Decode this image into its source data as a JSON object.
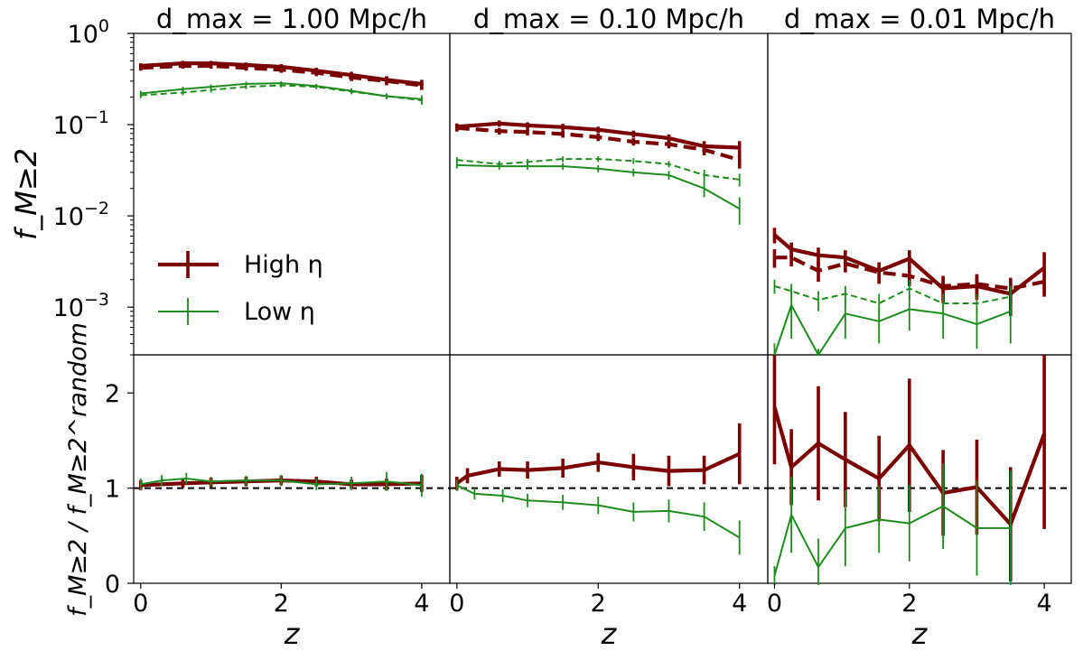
{
  "colors": {
    "high": "#7b0000",
    "low": "#1f8b1f",
    "reference": "#000000"
  },
  "figure": {
    "panel_titles": [
      "d_max = 1.00 Mpc/h",
      "d_max = 0.10 Mpc/h",
      "d_max = 0.01 Mpc/h"
    ],
    "top_ylabel": "f_M≥2",
    "bottom_ylabel": "f_M≥2 / f_M≥2^random",
    "xlabel": "z",
    "legend": {
      "high_label": "High η",
      "low_label": "Low η",
      "placement": "lower-left of first top panel"
    }
  },
  "chart_data": [
    {
      "type": "line",
      "panel": "top-left",
      "title": "d_max = 1.00 Mpc/h",
      "xlabel": "",
      "ylabel": "f_M≥2",
      "yscale": "log",
      "xlim": [
        -0.1,
        4.4
      ],
      "ylim": [
        0.0003,
        1
      ],
      "x_ticks": [],
      "y_ticks": [
        "10^0",
        "10^-1",
        "10^-2",
        "10^-3"
      ],
      "series": [
        {
          "name": "High η",
          "style": "solid",
          "x": [
            0,
            0.6,
            1,
            1.5,
            2,
            2.5,
            3,
            3.5,
            4
          ],
          "values": [
            0.44,
            0.47,
            0.47,
            0.45,
            0.43,
            0.39,
            0.35,
            0.31,
            0.28
          ],
          "err": [
            0.03,
            0.03,
            0.03,
            0.03,
            0.03,
            0.03,
            0.03,
            0.03,
            0.03
          ]
        },
        {
          "style": "dashed",
          "x": [
            0,
            0.6,
            1,
            1.5,
            2,
            2.5,
            3,
            3.5,
            4
          ],
          "values": [
            0.42,
            0.44,
            0.44,
            0.42,
            0.4,
            0.37,
            0.33,
            0.3,
            0.27
          ],
          "err": [
            0.03,
            0.03,
            0.03,
            0.03,
            0.03,
            0.03,
            0.03,
            0.03,
            0.03
          ]
        },
        {
          "name": "Low η",
          "style": "solid",
          "x": [
            0,
            0.6,
            1,
            1.5,
            2,
            2.5,
            3,
            3.5,
            4
          ],
          "values": [
            0.22,
            0.245,
            0.26,
            0.28,
            0.285,
            0.265,
            0.235,
            0.205,
            0.19
          ],
          "err": [
            0.015,
            0.015,
            0.015,
            0.015,
            0.015,
            0.015,
            0.015,
            0.015,
            0.02
          ]
        },
        {
          "style": "dashed",
          "x": [
            0,
            0.6,
            1,
            1.5,
            2,
            2.5,
            3,
            3.5,
            4
          ],
          "values": [
            0.21,
            0.225,
            0.24,
            0.26,
            0.27,
            0.26,
            0.23,
            0.205,
            0.185
          ],
          "err": [
            0.015,
            0.015,
            0.015,
            0.015,
            0.015,
            0.015,
            0.015,
            0.015,
            0.02
          ]
        }
      ]
    },
    {
      "type": "line",
      "panel": "top-middle",
      "title": "d_max = 0.10 Mpc/h",
      "xlabel": "",
      "ylabel": "",
      "yscale": "log",
      "xlim": [
        -0.1,
        4.4
      ],
      "ylim": [
        0.0003,
        1
      ],
      "series": [
        {
          "name": "High η",
          "style": "solid",
          "x": [
            0,
            0.6,
            1,
            1.5,
            2,
            2.5,
            3,
            3.5,
            4
          ],
          "values": [
            0.095,
            0.103,
            0.098,
            0.094,
            0.088,
            0.079,
            0.071,
            0.058,
            0.056
          ],
          "err": [
            0.008,
            0.008,
            0.008,
            0.008,
            0.007,
            0.007,
            0.007,
            0.008,
            0.01
          ]
        },
        {
          "style": "dashed",
          "x": [
            0,
            0.6,
            1,
            1.5,
            2,
            2.5,
            3,
            3.5,
            4
          ],
          "values": [
            0.092,
            0.085,
            0.083,
            0.079,
            0.073,
            0.065,
            0.061,
            0.053,
            0.041
          ],
          "err": [
            0.008,
            0.007,
            0.007,
            0.007,
            0.007,
            0.006,
            0.006,
            0.007,
            0.008
          ]
        },
        {
          "name": "Low η",
          "style": "solid",
          "x": [
            0,
            0.6,
            1,
            1.5,
            2,
            2.5,
            3,
            3.5,
            4
          ],
          "values": [
            0.036,
            0.035,
            0.035,
            0.035,
            0.033,
            0.03,
            0.028,
            0.02,
            0.012
          ],
          "err": [
            0.003,
            0.003,
            0.003,
            0.003,
            0.003,
            0.003,
            0.003,
            0.004,
            0.004
          ]
        },
        {
          "style": "dashed",
          "x": [
            0,
            0.6,
            1,
            1.5,
            2,
            2.5,
            3,
            3.5,
            4
          ],
          "values": [
            0.041,
            0.037,
            0.039,
            0.042,
            0.042,
            0.04,
            0.037,
            0.028,
            0.025
          ],
          "err": [
            0.003,
            0.003,
            0.003,
            0.003,
            0.003,
            0.003,
            0.003,
            0.004,
            0.004
          ]
        }
      ]
    },
    {
      "type": "line",
      "panel": "top-right",
      "title": "d_max = 0.01 Mpc/h",
      "xlabel": "",
      "ylabel": "",
      "yscale": "log",
      "xlim": [
        -0.1,
        4.4
      ],
      "ylim": [
        0.0003,
        1
      ],
      "series": [
        {
          "name": "High η",
          "style": "solid",
          "x": [
            0,
            0.25,
            0.65,
            1.05,
            1.55,
            2,
            2.5,
            3,
            3.5,
            4
          ],
          "values": [
            0.0062,
            0.0043,
            0.0037,
            0.0035,
            0.0025,
            0.0034,
            0.0016,
            0.0017,
            0.0014,
            0.0027
          ],
          "err": [
            0.0012,
            0.0008,
            0.0008,
            0.0007,
            0.0006,
            0.0008,
            0.0005,
            0.0005,
            0.0006,
            0.0013
          ]
        },
        {
          "style": "dashed",
          "x": [
            0,
            0.25,
            0.65,
            1.05,
            1.55,
            2,
            2.5,
            3,
            3.5,
            4
          ],
          "values": [
            0.0035,
            0.0035,
            0.0025,
            0.003,
            0.0024,
            0.0022,
            0.0017,
            0.0018,
            0.0016,
            0.0019
          ],
          "err": [
            0.0008,
            0.0007,
            0.0006,
            0.0006,
            0.0006,
            0.0005,
            0.0005,
            0.0005,
            0.0005,
            0.0006
          ]
        },
        {
          "name": "Low η",
          "style": "solid",
          "x": [
            0,
            0.25,
            0.65,
            1.05,
            1.55,
            2,
            2.5,
            3,
            3.5
          ],
          "values": [
            0.00025,
            0.00105,
            0.0002,
            0.00085,
            0.0007,
            0.00095,
            0.00085,
            0.00065,
            0.0009
          ],
          "err": [
            0.00015,
            0.0006,
            0.00015,
            0.0004,
            0.0003,
            0.0004,
            0.0004,
            0.0003,
            0.0005
          ]
        },
        {
          "style": "dashed",
          "x": [
            0,
            0.25,
            0.65,
            1.05,
            1.55,
            2,
            2.5,
            3,
            3.5
          ],
          "values": [
            0.0017,
            0.0015,
            0.0012,
            0.0014,
            0.0011,
            0.0016,
            0.0011,
            0.0011,
            0.0013
          ],
          "err": [
            0.0003,
            0.0003,
            0.0003,
            0.0003,
            0.0003,
            0.0004,
            0.0003,
            0.0003,
            0.0004
          ]
        }
      ]
    },
    {
      "type": "line",
      "panel": "bottom-left",
      "title": "",
      "xlabel": "z",
      "ylabel": "f_M≥2 / f_M≥2^random",
      "xlim": [
        -0.1,
        4.4
      ],
      "ylim": [
        0,
        2.4
      ],
      "x_ticks": [
        "0",
        "2",
        "4"
      ],
      "y_ticks": [
        "0",
        "1",
        "2"
      ],
      "reference_line": 1,
      "series": [
        {
          "name": "High η",
          "x": [
            0,
            0.6,
            1,
            1.5,
            2,
            2.5,
            3,
            3.5,
            4
          ],
          "values": [
            1.03,
            1.05,
            1.06,
            1.07,
            1.08,
            1.07,
            1.04,
            1.04,
            1.05
          ],
          "err": [
            0.05,
            0.05,
            0.05,
            0.05,
            0.05,
            0.05,
            0.05,
            0.06,
            0.09
          ]
        },
        {
          "name": "Low η",
          "x": [
            0,
            0.3,
            0.65,
            1,
            1.5,
            2,
            2.5,
            3,
            3.5,
            4
          ],
          "values": [
            1.04,
            1.08,
            1.1,
            1.07,
            1.08,
            1.08,
            1.04,
            1.05,
            1.07,
            1.03
          ],
          "err": [
            0.06,
            0.06,
            0.06,
            0.05,
            0.05,
            0.06,
            0.06,
            0.07,
            0.1,
            0.12
          ]
        }
      ]
    },
    {
      "type": "line",
      "panel": "bottom-middle",
      "title": "",
      "xlabel": "z",
      "ylabel": "",
      "xlim": [
        -0.1,
        4.4
      ],
      "ylim": [
        0,
        2.4
      ],
      "x_ticks": [
        "0",
        "2",
        "4"
      ],
      "reference_line": 1,
      "series": [
        {
          "name": "High η",
          "x": [
            0,
            0.15,
            0.6,
            1,
            1.5,
            2,
            2.5,
            3,
            3.5,
            4
          ],
          "values": [
            1.05,
            1.13,
            1.2,
            1.19,
            1.21,
            1.27,
            1.22,
            1.18,
            1.19,
            1.36
          ],
          "err": [
            0.07,
            0.08,
            0.08,
            0.09,
            0.1,
            0.1,
            0.14,
            0.16,
            0.15,
            0.32
          ]
        },
        {
          "name": "Low η",
          "x": [
            0,
            0.25,
            0.65,
            1,
            1.5,
            2,
            2.5,
            3,
            3.5,
            4
          ],
          "values": [
            1.03,
            0.94,
            0.92,
            0.87,
            0.85,
            0.82,
            0.75,
            0.76,
            0.7,
            0.48
          ],
          "err": [
            0.06,
            0.06,
            0.07,
            0.07,
            0.08,
            0.09,
            0.1,
            0.12,
            0.15,
            0.18
          ]
        }
      ]
    },
    {
      "type": "line",
      "panel": "bottom-right",
      "title": "",
      "xlabel": "z",
      "ylabel": "",
      "xlim": [
        -0.1,
        4.4
      ],
      "ylim": [
        0,
        2.4
      ],
      "x_ticks": [
        "0",
        "2",
        "4"
      ],
      "reference_line": 1,
      "series": [
        {
          "name": "High η",
          "x": [
            0,
            0.25,
            0.65,
            1.05,
            1.55,
            2,
            2.5,
            3,
            3.5,
            4
          ],
          "values": [
            1.85,
            1.22,
            1.47,
            1.3,
            1.1,
            1.45,
            0.95,
            1.01,
            0.62,
            1.57
          ],
          "err": [
            0.6,
            0.4,
            0.6,
            0.5,
            0.45,
            0.7,
            0.45,
            0.5,
            0.6,
            1.0
          ]
        },
        {
          "name": "Low η",
          "x": [
            0,
            0.25,
            0.65,
            1.05,
            1.55,
            2,
            2.5,
            3,
            3.5
          ],
          "values": [
            0.08,
            0.72,
            0.17,
            0.58,
            0.67,
            0.63,
            0.81,
            0.58,
            0.58
          ],
          "err": [
            0.1,
            0.4,
            0.3,
            0.4,
            0.35,
            0.4,
            0.45,
            0.5,
            0.6
          ]
        }
      ]
    }
  ]
}
